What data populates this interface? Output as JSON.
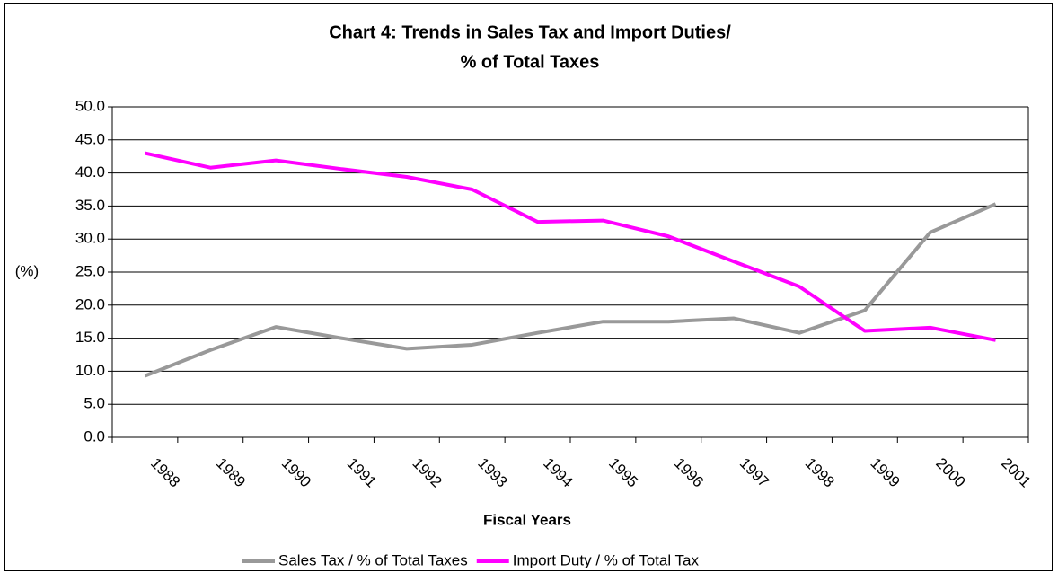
{
  "chart_data": {
    "type": "line",
    "title": [
      "Chart 4: Trends in Sales Tax and Import Duties/",
      "% of Total Taxes"
    ],
    "y_label": "(%)",
    "x_label": "Fiscal Years",
    "categories": [
      "1988",
      "1989",
      "1990",
      "1991",
      "1992",
      "1993",
      "1994",
      "1995",
      "1996",
      "1997",
      "1998",
      "1999",
      "2000",
      "2001"
    ],
    "series": [
      {
        "name": "Sales Tax / % of Total Taxes",
        "color": "#999999",
        "values": [
          9.3,
          13.2,
          16.7,
          15.0,
          13.4,
          14.0,
          15.8,
          17.5,
          17.5,
          18.0,
          15.8,
          19.2,
          31.0,
          35.3
        ]
      },
      {
        "name": "Import Duty / % of Total Tax",
        "color": "#ff00ff",
        "values": [
          43.0,
          40.8,
          41.9,
          40.6,
          39.4,
          37.5,
          32.6,
          32.8,
          30.4,
          26.6,
          22.8,
          16.1,
          16.6,
          14.7
        ]
      }
    ],
    "ylim": [
      0,
      50
    ],
    "yticks": [
      {
        "value": 0,
        "label": "0.0"
      },
      {
        "value": 5,
        "label": "5.0"
      },
      {
        "value": 10,
        "label": "10.0"
      },
      {
        "value": 15,
        "label": "15.0"
      },
      {
        "value": 20,
        "label": "20.0"
      },
      {
        "value": 25,
        "label": "25.0"
      },
      {
        "value": 30,
        "label": "30.0"
      },
      {
        "value": 35,
        "label": "35.0"
      },
      {
        "value": 40,
        "label": "40.0"
      },
      {
        "value": 45,
        "label": "45.0"
      },
      {
        "value": 50,
        "label": "50.0"
      }
    ],
    "grid": true,
    "legend": "bottom"
  }
}
